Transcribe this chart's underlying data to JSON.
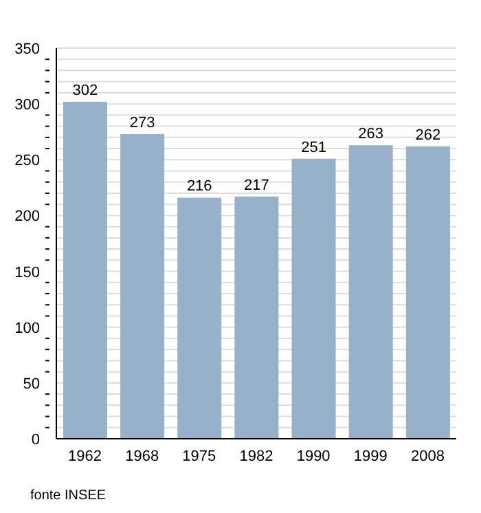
{
  "chart_data": {
    "type": "bar",
    "categories": [
      "1962",
      "1968",
      "1975",
      "1982",
      "1990",
      "1999",
      "2008"
    ],
    "values": [
      302,
      273,
      216,
      217,
      251,
      263,
      262
    ],
    "color": "#97b1cb",
    "data_labels": true,
    "grid": "y",
    "ylim": [
      0,
      350
    ],
    "yticks": [
      0,
      {
        "value": 10,
        "label": null
      },
      {
        "value": 20,
        "label": null
      },
      {
        "value": 30,
        "label": null
      },
      {
        "value": 40,
        "label": null
      },
      50,
      {
        "value": 60,
        "label": null
      },
      {
        "value": 70,
        "label": null
      },
      {
        "value": 80,
        "label": null
      },
      {
        "value": 90,
        "label": null
      },
      100,
      {
        "value": 110,
        "label": null
      },
      {
        "value": 120,
        "label": null
      },
      {
        "value": 130,
        "label": null
      },
      {
        "value": 140,
        "label": null
      },
      150,
      {
        "value": 160,
        "label": null
      },
      {
        "value": 170,
        "label": null
      },
      {
        "value": 180,
        "label": null
      },
      {
        "value": 190,
        "label": null
      },
      200,
      {
        "value": 210,
        "label": null
      },
      {
        "value": 220,
        "label": null
      },
      {
        "value": 230,
        "label": null
      },
      {
        "value": 240,
        "label": null
      },
      250,
      {
        "value": 260,
        "label": null
      },
      {
        "value": 270,
        "label": null
      },
      {
        "value": 280,
        "label": null
      },
      {
        "value": 290,
        "label": null
      },
      300,
      {
        "value": 310,
        "label": null
      },
      {
        "value": 320,
        "label": null
      },
      {
        "value": 330,
        "label": null
      },
      {
        "value": 340,
        "label": null
      },
      350
    ],
    "annotations": [
      "fonte INSEE"
    ]
  }
}
